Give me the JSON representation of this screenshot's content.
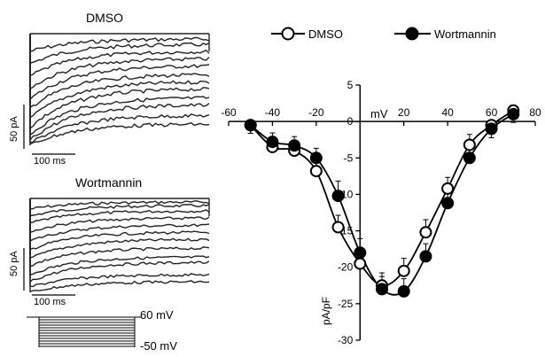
{
  "traces": {
    "top_title": "DMSO",
    "bottom_title": "Wortmannin",
    "scale_current": "50 pA",
    "scale_time": "100 ms",
    "protocol_high": "60 mV",
    "protocol_low": "-50 mV"
  },
  "chart_data": {
    "type": "line",
    "xlabel": "mV",
    "ylabel": "pA/pF",
    "xlim": [
      -60,
      80
    ],
    "ylim": [
      -30,
      5
    ],
    "xticks": [
      -60,
      -40,
      -20,
      0,
      20,
      40,
      60,
      80
    ],
    "yticks": [
      5,
      0,
      -5,
      -10,
      -15,
      -20,
      -25,
      -30
    ],
    "legend_position": "top",
    "grid": false,
    "series": [
      {
        "name": "DMSO",
        "marker": "open-circle",
        "color": "#000000",
        "x": [
          -50,
          -40,
          -30,
          -20,
          -10,
          0,
          10,
          20,
          30,
          40,
          50,
          60,
          70
        ],
        "y": [
          -0.5,
          -3.5,
          -4.0,
          -6.8,
          -14.5,
          -19.5,
          -22.5,
          -20.5,
          -15.2,
          -9.2,
          -3.2,
          -0.5,
          1.5
        ],
        "err": [
          0.4,
          0.5,
          0.5,
          0.7,
          0.9,
          1.0,
          1.0,
          1.0,
          1.0,
          0.8,
          0.7,
          0.5,
          0.4
        ]
      },
      {
        "name": "Wortmannin",
        "marker": "filled-circle",
        "color": "#000000",
        "x": [
          -50,
          -40,
          -30,
          -20,
          -10,
          0,
          10,
          20,
          30,
          40,
          50,
          60,
          70
        ],
        "y": [
          -0.5,
          -2.8,
          -3.3,
          -5.0,
          -10.2,
          -18.0,
          -23.0,
          -23.3,
          -18.5,
          -11.2,
          -5.0,
          -1.0,
          1.0
        ],
        "err": [
          0.4,
          0.5,
          0.5,
          0.6,
          1.3,
          1.2,
          1.0,
          1.0,
          1.0,
          0.8,
          0.7,
          0.5,
          0.4
        ]
      }
    ]
  }
}
